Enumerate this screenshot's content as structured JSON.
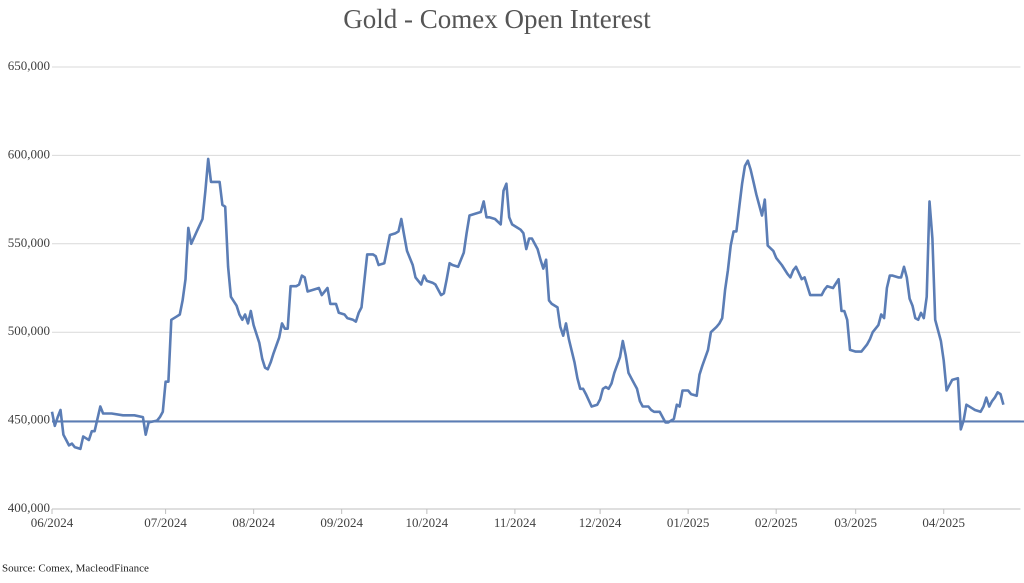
{
  "chart_data": {
    "type": "line",
    "title": "Gold - Comex Open Interest",
    "source": "Source: Comex,  MacleodFinance",
    "x": [
      0,
      1,
      2,
      3,
      4,
      5,
      6,
      7,
      8,
      10,
      11,
      12,
      13,
      14,
      15,
      17,
      18,
      21,
      25,
      29,
      32,
      33,
      34,
      37,
      38,
      39,
      40,
      41,
      42,
      44,
      45,
      46,
      47,
      48,
      49,
      51,
      53,
      54,
      55,
      56,
      58,
      59,
      60,
      61,
      62,
      63,
      65,
      66,
      67,
      68,
      69,
      70,
      71,
      73,
      74,
      75,
      76,
      77,
      78,
      80,
      81,
      82,
      83,
      84,
      86,
      87,
      88,
      89,
      90,
      92,
      94,
      95,
      97,
      98,
      100,
      101,
      103,
      104,
      106,
      107,
      108,
      109,
      111,
      113,
      114,
      115,
      117,
      119,
      121,
      122,
      123,
      124,
      125,
      127,
      128,
      130,
      131,
      132,
      134,
      135,
      137,
      138,
      139,
      140,
      141,
      143,
      145,
      146,
      147,
      149,
      151,
      152,
      153,
      154,
      156,
      158,
      159,
      160,
      161,
      162,
      164,
      165,
      166,
      167,
      168,
      169,
      171,
      172,
      173,
      174,
      175,
      176,
      178,
      179,
      180,
      181,
      182,
      184,
      185,
      186,
      187,
      188,
      190,
      192,
      193,
      194,
      195,
      196,
      197,
      198,
      200,
      201,
      202,
      203,
      204,
      206,
      207,
      208,
      210,
      211,
      212,
      214,
      216,
      217,
      219,
      220,
      221,
      222,
      224,
      225,
      227,
      228,
      229,
      231,
      232,
      234,
      235,
      236,
      237,
      238,
      239,
      240,
      241,
      242,
      243,
      244,
      245,
      246,
      247,
      248,
      250,
      251,
      252,
      254,
      255,
      257,
      259,
      260,
      261,
      262,
      264,
      265,
      267,
      269,
      271,
      272,
      273,
      275,
      277,
      278,
      279,
      280,
      281,
      283,
      285,
      287,
      288,
      289,
      291,
      292,
      293,
      294,
      295,
      296,
      298,
      299,
      300,
      301,
      302,
      303,
      304,
      305,
      306,
      307,
      308,
      309,
      310,
      311,
      313,
      314,
      315,
      316,
      317,
      319,
      320,
      321,
      322,
      324,
      325,
      327,
      328,
      329,
      330,
      331,
      332,
      333,
      334,
      335
    ],
    "series": [
      {
        "name": "Open Interest",
        "color": "#5b7db5",
        "values": [
          455000,
          447000,
          452000,
          456000,
          442000,
          439000,
          436000,
          437000,
          435000,
          434000,
          441000,
          440000,
          439000,
          444000,
          444000,
          458000,
          454000,
          454000,
          453000,
          453000,
          452000,
          442000,
          449000,
          450000,
          452000,
          455000,
          472000,
          472000,
          507000,
          509000,
          510000,
          518000,
          530000,
          559000,
          550000,
          557000,
          564000,
          580000,
          598000,
          585000,
          585000,
          585000,
          572000,
          571000,
          537000,
          520000,
          515000,
          510000,
          507000,
          510000,
          505000,
          512000,
          504000,
          494000,
          485000,
          480000,
          479000,
          483000,
          488000,
          497000,
          505000,
          502000,
          502000,
          526000,
          526000,
          527000,
          532000,
          531000,
          523000,
          524000,
          525000,
          521000,
          525000,
          516000,
          516000,
          511000,
          510000,
          508000,
          507000,
          506000,
          511000,
          514000,
          544000,
          544000,
          543000,
          538000,
          539000,
          555000,
          556000,
          557000,
          564000,
          555000,
          546000,
          538000,
          531000,
          527000,
          532000,
          529000,
          528000,
          527000,
          521000,
          522000,
          530000,
          539000,
          538000,
          537000,
          545000,
          556000,
          566000,
          567000,
          568000,
          574000,
          565000,
          565000,
          564000,
          561000,
          580000,
          584000,
          565000,
          561000,
          559000,
          558000,
          556000,
          547000,
          553000,
          553000,
          547000,
          541000,
          536000,
          541000,
          518000,
          516000,
          514000,
          503000,
          498000,
          505000,
          496000,
          483000,
          474000,
          468000,
          468000,
          465000,
          458000,
          459000,
          462000,
          468000,
          469000,
          468000,
          471000,
          477000,
          486000,
          495000,
          487000,
          477000,
          474000,
          468000,
          461000,
          458000,
          458000,
          456000,
          455000,
          455000,
          449000,
          449000,
          451000,
          459000,
          458000,
          467000,
          467000,
          465000,
          464000,
          476000,
          481000,
          490000,
          500000,
          503000,
          505000,
          508000,
          524000,
          535000,
          549000,
          557000,
          557000,
          571000,
          584000,
          594000,
          597000,
          592000,
          585000,
          578000,
          566000,
          575000,
          549000,
          546000,
          542000,
          538000,
          533000,
          531000,
          535000,
          537000,
          530000,
          531000,
          521000,
          521000,
          521000,
          524000,
          526000,
          525000,
          530000,
          512000,
          512000,
          507000,
          490000,
          489000,
          489000,
          493000,
          496000,
          500000,
          504000,
          510000,
          508000,
          525000,
          532000,
          532000,
          531000,
          531000,
          537000,
          531000,
          519000,
          515000,
          508000,
          507000,
          511000,
          508000,
          520000,
          574000,
          553000,
          507000,
          495000,
          484000,
          467000,
          470000,
          473000,
          474000,
          445000,
          450000,
          459000,
          457000,
          456000,
          455000,
          458000,
          463000,
          458000,
          461000,
          463000,
          466000,
          465000,
          459000
        ]
      }
    ],
    "hline": {
      "value": 449500,
      "color": "#5b7db5"
    },
    "xlim": [
      0,
      341
    ],
    "xticks": [
      {
        "value": 0,
        "label": "06/2024"
      },
      {
        "value": 40,
        "label": "07/2024"
      },
      {
        "value": 71,
        "label": "08/2024"
      },
      {
        "value": 102,
        "label": "09/2024"
      },
      {
        "value": 132,
        "label": "10/2024"
      },
      {
        "value": 163,
        "label": "11/2024"
      },
      {
        "value": 193,
        "label": "12/2024"
      },
      {
        "value": 224,
        "label": "01/2025"
      },
      {
        "value": 255,
        "label": "02/2025"
      },
      {
        "value": 283,
        "label": "03/2025"
      },
      {
        "value": 314,
        "label": "04/2025"
      }
    ],
    "ylim": [
      400000,
      650000
    ],
    "yticks": [
      {
        "value": 400000,
        "label": "400,000"
      },
      {
        "value": 450000,
        "label": "450,000"
      },
      {
        "value": 500000,
        "label": "500,000"
      },
      {
        "value": 550000,
        "label": "550,000"
      },
      {
        "value": 600000,
        "label": "600,000"
      },
      {
        "value": 650000,
        "label": "650,000"
      }
    ],
    "grid": true
  }
}
